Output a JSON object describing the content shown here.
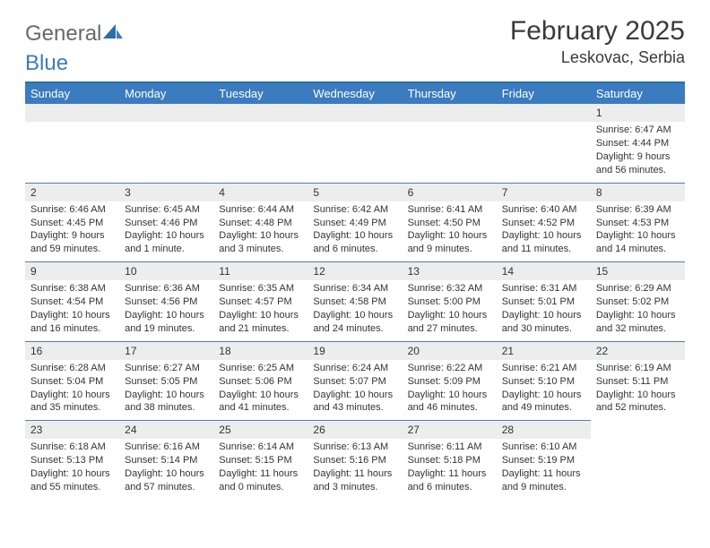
{
  "logo": {
    "part1": "General",
    "part2": "Blue"
  },
  "title": "February 2025",
  "location": "Leskovac, Serbia",
  "colors": {
    "header_bar": "#3b7bbf",
    "rule": "#2e6da4",
    "daynum_bg": "#eceded",
    "cell_border": "#5a7ca3",
    "text": "#333333",
    "logo_gray": "#666a6d",
    "logo_blue": "#3b7bbf",
    "background": "#ffffff"
  },
  "weekdays": [
    "Sunday",
    "Monday",
    "Tuesday",
    "Wednesday",
    "Thursday",
    "Friday",
    "Saturday"
  ],
  "leading_blanks": 6,
  "days": [
    {
      "n": "1",
      "sunrise": "6:47 AM",
      "sunset": "4:44 PM",
      "daylight": "9 hours and 56 minutes."
    },
    {
      "n": "2",
      "sunrise": "6:46 AM",
      "sunset": "4:45 PM",
      "daylight": "9 hours and 59 minutes."
    },
    {
      "n": "3",
      "sunrise": "6:45 AM",
      "sunset": "4:46 PM",
      "daylight": "10 hours and 1 minute."
    },
    {
      "n": "4",
      "sunrise": "6:44 AM",
      "sunset": "4:48 PM",
      "daylight": "10 hours and 3 minutes."
    },
    {
      "n": "5",
      "sunrise": "6:42 AM",
      "sunset": "4:49 PM",
      "daylight": "10 hours and 6 minutes."
    },
    {
      "n": "6",
      "sunrise": "6:41 AM",
      "sunset": "4:50 PM",
      "daylight": "10 hours and 9 minutes."
    },
    {
      "n": "7",
      "sunrise": "6:40 AM",
      "sunset": "4:52 PM",
      "daylight": "10 hours and 11 minutes."
    },
    {
      "n": "8",
      "sunrise": "6:39 AM",
      "sunset": "4:53 PM",
      "daylight": "10 hours and 14 minutes."
    },
    {
      "n": "9",
      "sunrise": "6:38 AM",
      "sunset": "4:54 PM",
      "daylight": "10 hours and 16 minutes."
    },
    {
      "n": "10",
      "sunrise": "6:36 AM",
      "sunset": "4:56 PM",
      "daylight": "10 hours and 19 minutes."
    },
    {
      "n": "11",
      "sunrise": "6:35 AM",
      "sunset": "4:57 PM",
      "daylight": "10 hours and 21 minutes."
    },
    {
      "n": "12",
      "sunrise": "6:34 AM",
      "sunset": "4:58 PM",
      "daylight": "10 hours and 24 minutes."
    },
    {
      "n": "13",
      "sunrise": "6:32 AM",
      "sunset": "5:00 PM",
      "daylight": "10 hours and 27 minutes."
    },
    {
      "n": "14",
      "sunrise": "6:31 AM",
      "sunset": "5:01 PM",
      "daylight": "10 hours and 30 minutes."
    },
    {
      "n": "15",
      "sunrise": "6:29 AM",
      "sunset": "5:02 PM",
      "daylight": "10 hours and 32 minutes."
    },
    {
      "n": "16",
      "sunrise": "6:28 AM",
      "sunset": "5:04 PM",
      "daylight": "10 hours and 35 minutes."
    },
    {
      "n": "17",
      "sunrise": "6:27 AM",
      "sunset": "5:05 PM",
      "daylight": "10 hours and 38 minutes."
    },
    {
      "n": "18",
      "sunrise": "6:25 AM",
      "sunset": "5:06 PM",
      "daylight": "10 hours and 41 minutes."
    },
    {
      "n": "19",
      "sunrise": "6:24 AM",
      "sunset": "5:07 PM",
      "daylight": "10 hours and 43 minutes."
    },
    {
      "n": "20",
      "sunrise": "6:22 AM",
      "sunset": "5:09 PM",
      "daylight": "10 hours and 46 minutes."
    },
    {
      "n": "21",
      "sunrise": "6:21 AM",
      "sunset": "5:10 PM",
      "daylight": "10 hours and 49 minutes."
    },
    {
      "n": "22",
      "sunrise": "6:19 AM",
      "sunset": "5:11 PM",
      "daylight": "10 hours and 52 minutes."
    },
    {
      "n": "23",
      "sunrise": "6:18 AM",
      "sunset": "5:13 PM",
      "daylight": "10 hours and 55 minutes."
    },
    {
      "n": "24",
      "sunrise": "6:16 AM",
      "sunset": "5:14 PM",
      "daylight": "10 hours and 57 minutes."
    },
    {
      "n": "25",
      "sunrise": "6:14 AM",
      "sunset": "5:15 PM",
      "daylight": "11 hours and 0 minutes."
    },
    {
      "n": "26",
      "sunrise": "6:13 AM",
      "sunset": "5:16 PM",
      "daylight": "11 hours and 3 minutes."
    },
    {
      "n": "27",
      "sunrise": "6:11 AM",
      "sunset": "5:18 PM",
      "daylight": "11 hours and 6 minutes."
    },
    {
      "n": "28",
      "sunrise": "6:10 AM",
      "sunset": "5:19 PM",
      "daylight": "11 hours and 9 minutes."
    }
  ],
  "labels": {
    "sunrise_prefix": "Sunrise: ",
    "sunset_prefix": "Sunset: ",
    "daylight_prefix": "Daylight: "
  }
}
